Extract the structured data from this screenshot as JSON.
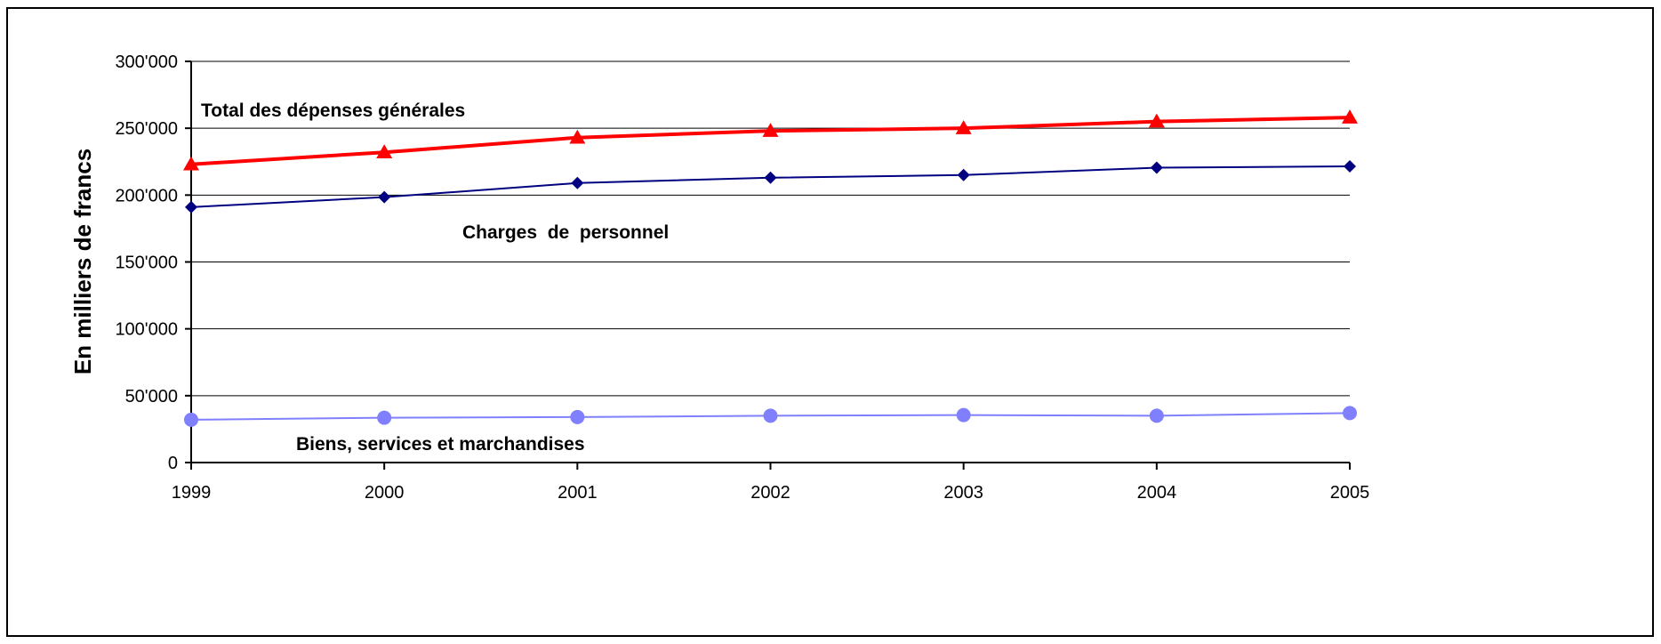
{
  "chart_data": {
    "type": "line",
    "title": "",
    "xlabel": "",
    "ylabel": "En milliers de francs",
    "categories": [
      "1999",
      "2000",
      "2001",
      "2002",
      "2003",
      "2004",
      "2005"
    ],
    "ylim": [
      0,
      300000
    ],
    "yticks": [
      0,
      50000,
      100000,
      150000,
      200000,
      250000,
      300000
    ],
    "ytick_labels": [
      "0",
      "50'000",
      "100'000",
      "150'000",
      "200'000",
      "250'000",
      "300'000"
    ],
    "grid": true,
    "legend": "none",
    "series": [
      {
        "name": "Total des dépenses générales",
        "values": [
          223000,
          232000,
          243000,
          248000,
          250000,
          255000,
          258000
        ],
        "color": "#ff0000",
        "marker": "triangle"
      },
      {
        "name": "Charges  de  personnel",
        "values": [
          191000,
          198500,
          209000,
          213000,
          215000,
          220500,
          221500
        ],
        "color": "#000080",
        "marker": "diamond"
      },
      {
        "name": "Biens, services et marchandises",
        "values": [
          32000,
          33500,
          34000,
          35000,
          35500,
          35000,
          37000
        ],
        "color": "#8080ff",
        "marker": "circle"
      }
    ]
  }
}
